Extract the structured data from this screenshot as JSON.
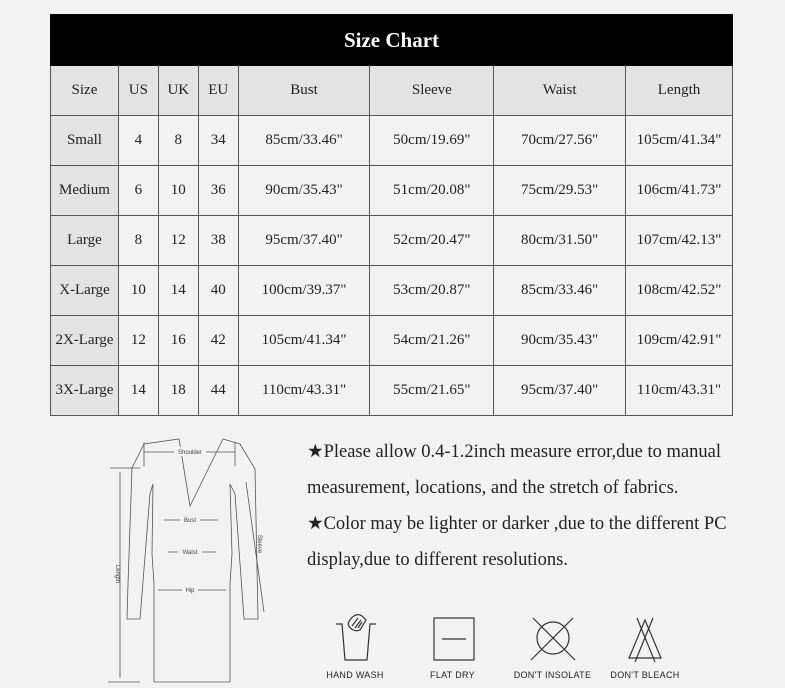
{
  "title": "Size Chart",
  "columns": [
    "Size",
    "US",
    "UK",
    "EU",
    "Bust",
    "Sleeve",
    "Waist",
    "Length"
  ],
  "rows": [
    [
      "Small",
      "4",
      "8",
      "34",
      "85cm/33.46\"",
      "50cm/19.69\"",
      "70cm/27.56\"",
      "105cm/41.34\""
    ],
    [
      "Medium",
      "6",
      "10",
      "36",
      "90cm/35.43\"",
      "51cm/20.08\"",
      "75cm/29.53\"",
      "106cm/41.73\""
    ],
    [
      "Large",
      "8",
      "12",
      "38",
      "95cm/37.40\"",
      "52cm/20.47\"",
      "80cm/31.50\"",
      "107cm/42.13\""
    ],
    [
      "X-Large",
      "10",
      "14",
      "40",
      "100cm/39.37\"",
      "53cm/20.87\"",
      "85cm/33.46\"",
      "108cm/42.52\""
    ],
    [
      "2X-Large",
      "12",
      "16",
      "42",
      "105cm/41.34\"",
      "54cm/21.26\"",
      "90cm/35.43\"",
      "109cm/42.91\""
    ],
    [
      "3X-Large",
      "14",
      "18",
      "44",
      "110cm/43.31\"",
      "55cm/21.65\"",
      "95cm/37.40\"",
      "110cm/43.31\""
    ]
  ],
  "diagram": {
    "labels": {
      "shoulder": "Shoulder",
      "bust": "Bust",
      "waist": "Waist",
      "hip": "Hip",
      "sleeve": "Sleeve",
      "length": "Length"
    }
  },
  "notes": [
    "★Please allow 0.4-1.2inch measure error,due to manual measurement, locations, and the stretch of fabrics.",
    "★Color may be lighter or darker ,due to the different PC display,due to different resolutions."
  ],
  "care": [
    {
      "icon": "hand-wash-icon",
      "label": "HAND WASH"
    },
    {
      "icon": "flat-dry-icon",
      "label": "FLAT  DRY"
    },
    {
      "icon": "dont-insolate-icon",
      "label": "DON'T INSOLATE"
    },
    {
      "icon": "dont-bleach-icon",
      "label": "DON'T BLEACH"
    }
  ]
}
